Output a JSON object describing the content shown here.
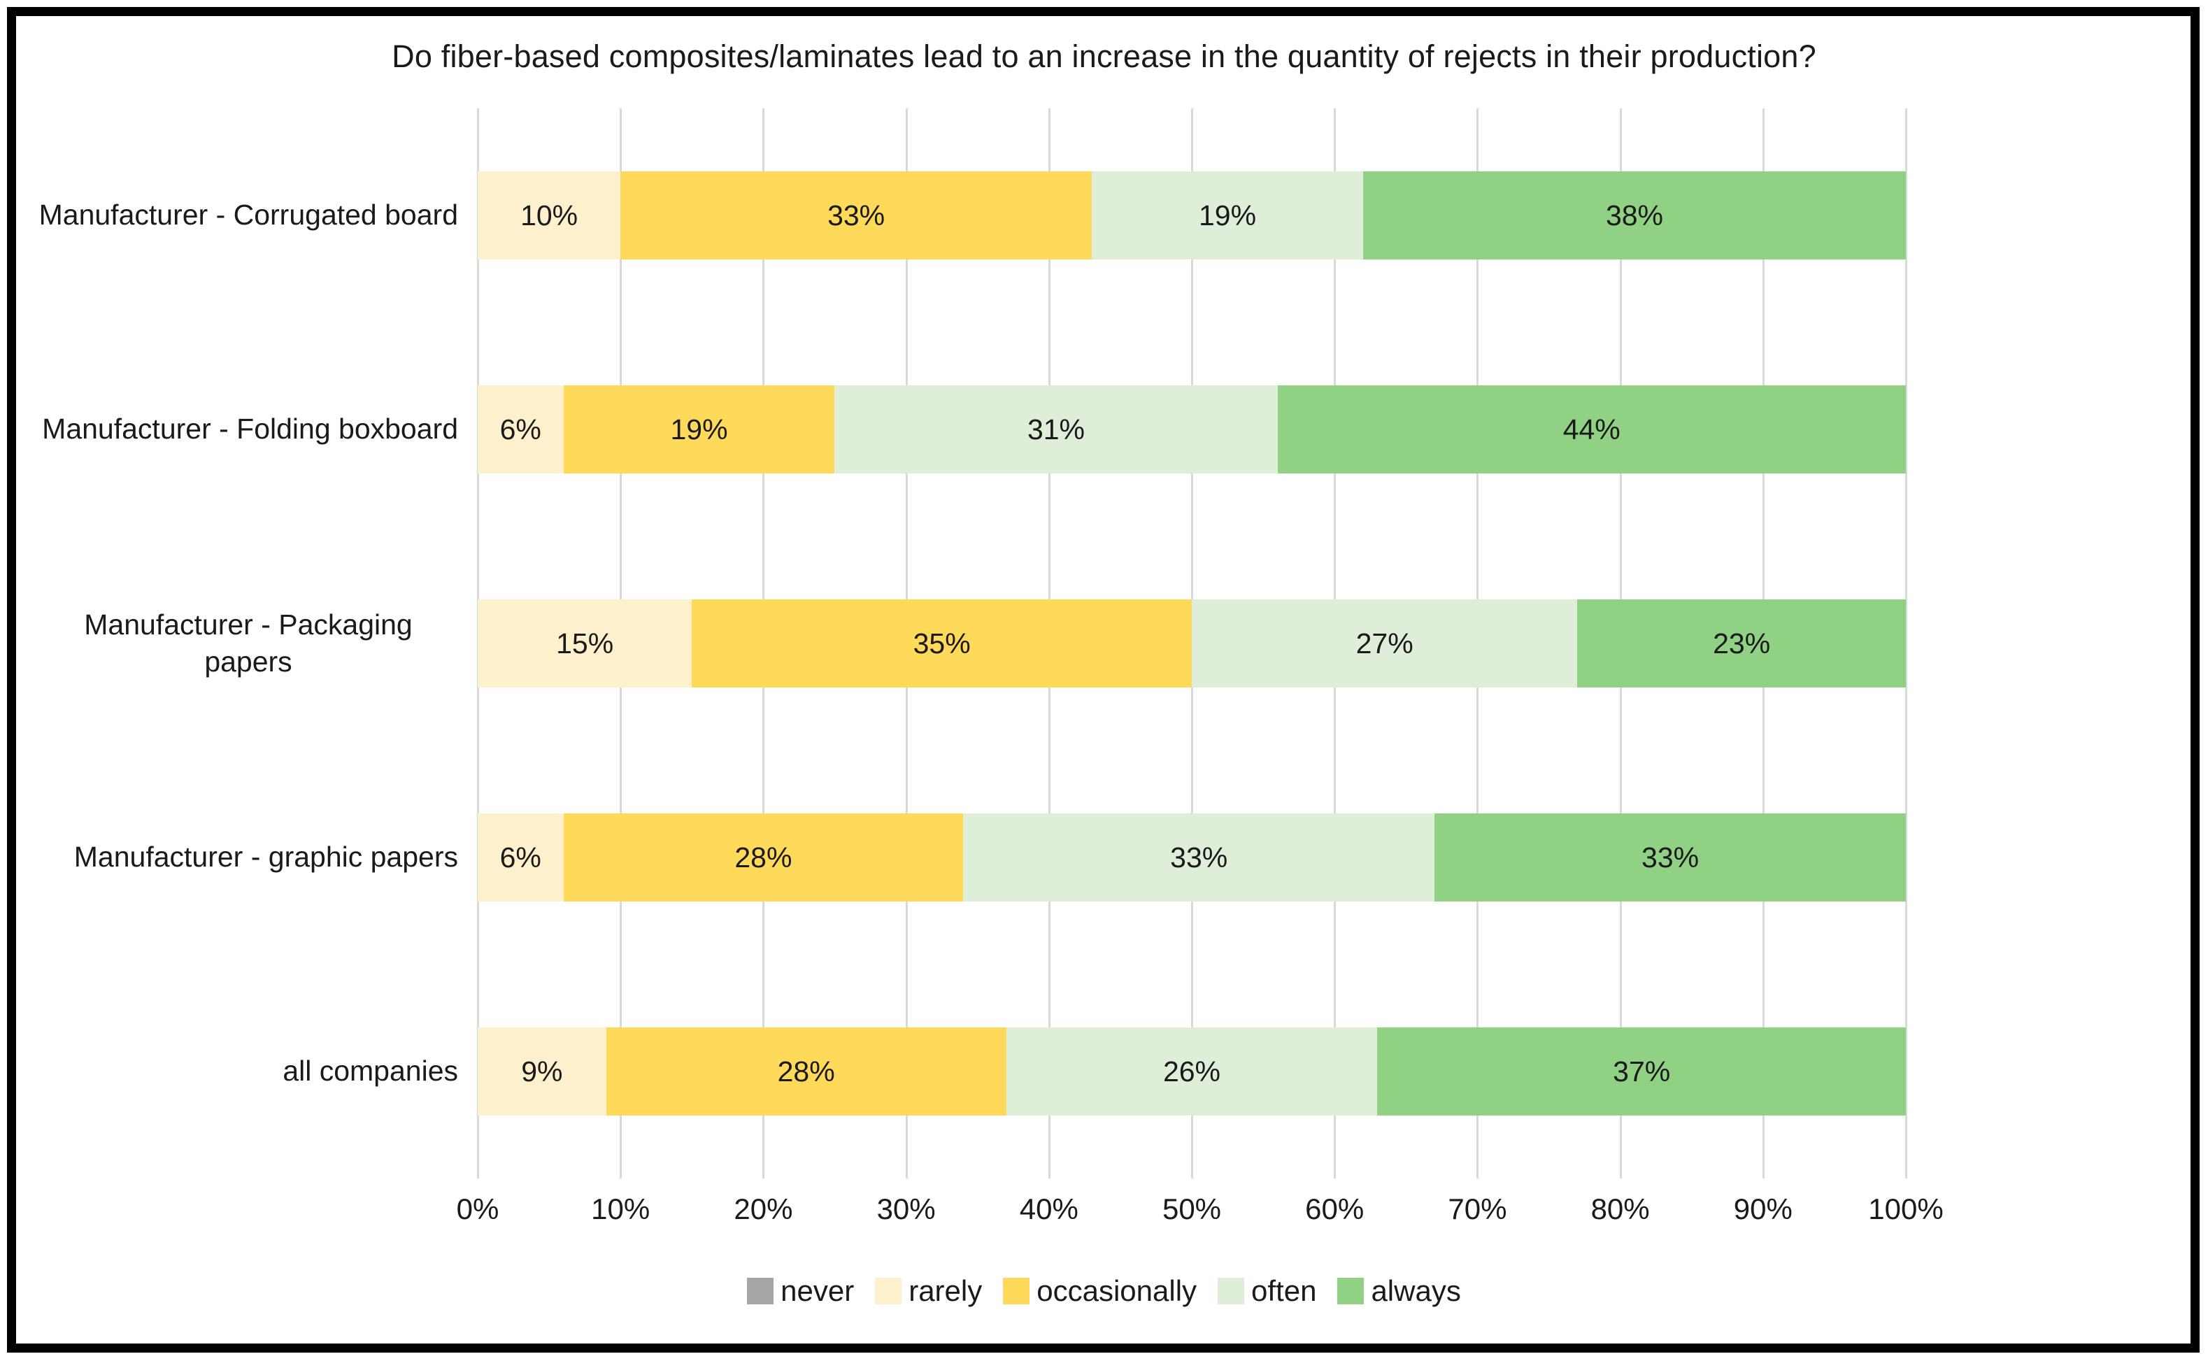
{
  "title": "Do fiber-based composites/laminates lead to an increase in the quantity of rejects in their production?",
  "chart_data": {
    "type": "bar",
    "stacked": true,
    "orientation": "horizontal",
    "title": "Do fiber-based composites/laminates lead to an increase in the quantity of rejects in their production?",
    "xlabel": "",
    "ylabel": "",
    "xlim": [
      0,
      100
    ],
    "unit": "%",
    "grid": true,
    "legend_position": "bottom",
    "categories": [
      "Manufacturer - Corrugated board",
      "Manufacturer - Folding boxboard",
      "Manufacturer - Packaging papers",
      "Manufacturer - graphic papers",
      "all companies"
    ],
    "series": [
      {
        "name": "never",
        "color": "#a6a6a6",
        "values": [
          0,
          0,
          0,
          0,
          0
        ]
      },
      {
        "name": "rarely",
        "color": "#fdf0cd",
        "values": [
          10,
          6,
          15,
          6,
          9
        ]
      },
      {
        "name": "occasionally",
        "color": "#ffd95a",
        "values": [
          33,
          19,
          35,
          28,
          28
        ]
      },
      {
        "name": "often",
        "color": "#deeed9",
        "values": [
          19,
          31,
          27,
          33,
          26
        ]
      },
      {
        "name": "always",
        "color": "#90d184",
        "values": [
          38,
          44,
          23,
          33,
          37
        ]
      }
    ],
    "x_ticks": [
      "0%",
      "10%",
      "20%",
      "30%",
      "40%",
      "50%",
      "60%",
      "70%",
      "80%",
      "90%",
      "100%"
    ],
    "data_labels": "shown inside segments as percent, hidden when value is 0"
  },
  "colors": {
    "gridline": "#d9d9d9",
    "frame_border": "#000000",
    "text": "#1a1a1a"
  }
}
